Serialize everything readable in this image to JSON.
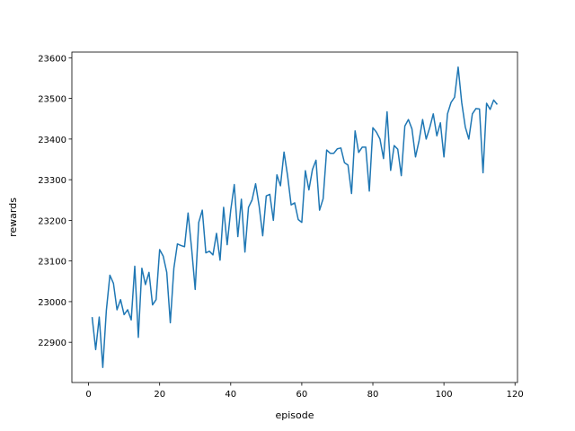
{
  "chart_data": {
    "type": "line",
    "x_label": "episode",
    "y_label": "rewards",
    "x": [
      1,
      2,
      3,
      4,
      5,
      6,
      7,
      8,
      9,
      10,
      11,
      12,
      13,
      14,
      15,
      16,
      17,
      18,
      19,
      20,
      21,
      22,
      23,
      24,
      25,
      26,
      27,
      28,
      29,
      30,
      31,
      32,
      33,
      34,
      35,
      36,
      37,
      38,
      39,
      40,
      41,
      42,
      43,
      44,
      45,
      46,
      47,
      48,
      49,
      50,
      51,
      52,
      53,
      54,
      55,
      56,
      57,
      58,
      59,
      60,
      61,
      62,
      63,
      64,
      65,
      66,
      67,
      68,
      69,
      70,
      71,
      72,
      73,
      74,
      75,
      76,
      77,
      78,
      79,
      80,
      81,
      82,
      83,
      84,
      85,
      86,
      87,
      88,
      89,
      90,
      91,
      92,
      93,
      94,
      95,
      96,
      97,
      98,
      99,
      100,
      101,
      102,
      103,
      104,
      105,
      106,
      107,
      108,
      109,
      110,
      111,
      112,
      113,
      114,
      115
    ],
    "series": [
      {
        "color": "#1f77b4",
        "values": [
          22962,
          22882,
          22962,
          22838,
          22978,
          23065,
          23045,
          22980,
          23005,
          22968,
          22980,
          22955,
          23087,
          22912,
          23082,
          23042,
          23072,
          22992,
          23005,
          23128,
          23112,
          23072,
          22948,
          23082,
          23142,
          23138,
          23135,
          23218,
          23130,
          23030,
          23195,
          23225,
          23120,
          23124,
          23115,
          23168,
          23102,
          23232,
          23140,
          23225,
          23288,
          23160,
          23252,
          23122,
          23232,
          23250,
          23290,
          23235,
          23162,
          23260,
          23264,
          23200,
          23312,
          23285,
          23368,
          23310,
          23238,
          23243,
          23202,
          23195,
          23322,
          23275,
          23325,
          23348,
          23225,
          23253,
          23373,
          23365,
          23365,
          23376,
          23378,
          23342,
          23336,
          23266,
          23420,
          23367,
          23380,
          23380,
          23272,
          23428,
          23417,
          23400,
          23352,
          23467,
          23323,
          23384,
          23375,
          23310,
          23432,
          23448,
          23425,
          23356,
          23396,
          23448,
          23400,
          23428,
          23462,
          23408,
          23440,
          23356,
          23462,
          23490,
          23503,
          23577,
          23490,
          23430,
          23400,
          23462,
          23475,
          23474,
          23317,
          23488,
          23473,
          23496,
          23485
        ]
      }
    ],
    "xlim": [
      -4.7,
      120.7
    ],
    "ylim": [
      22801,
      23614
    ],
    "xticks": [
      0,
      20,
      40,
      60,
      80,
      100,
      120
    ],
    "yticks": [
      22900,
      23000,
      23100,
      23200,
      23300,
      23400,
      23500,
      23600
    ]
  }
}
